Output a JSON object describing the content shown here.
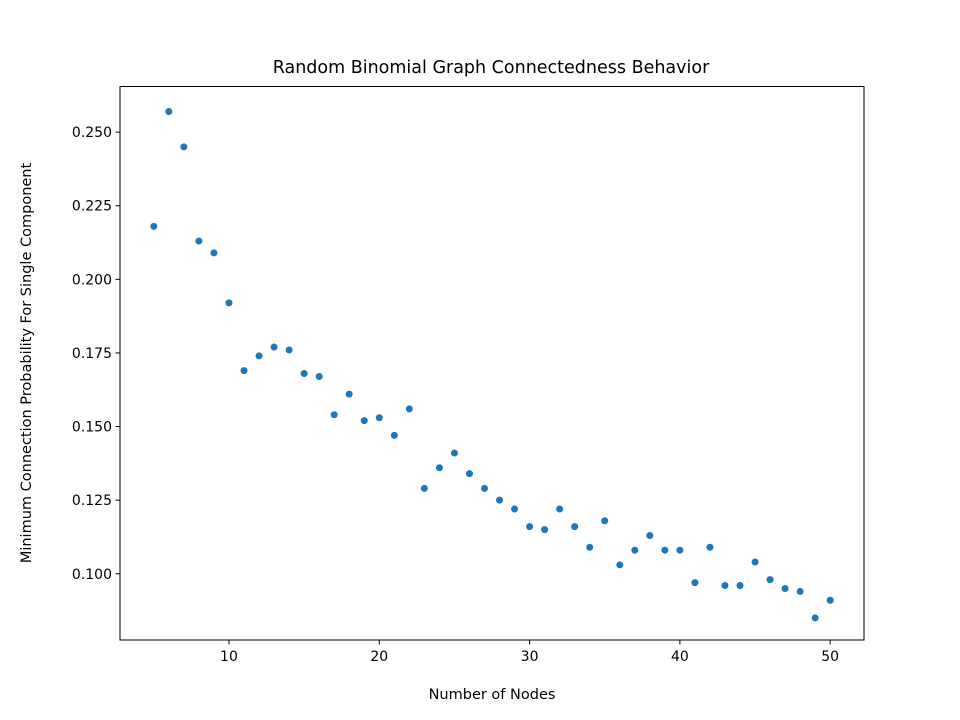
{
  "chart_data": {
    "type": "scatter",
    "title": "Random Binomial Graph Connectedness Behavior",
    "xlabel": "Number of Nodes",
    "ylabel": "Minimum Connection Probability For Single Component",
    "xlim": [
      2.75,
      52.25
    ],
    "ylim": [
      0.0775,
      0.2655
    ],
    "xticks": [
      10,
      20,
      30,
      40,
      50
    ],
    "xtick_labels": [
      "10",
      "20",
      "30",
      "40",
      "50"
    ],
    "yticks": [
      0.1,
      0.125,
      0.15,
      0.175,
      0.2,
      0.225,
      0.25
    ],
    "ytick_labels": [
      "0.100",
      "0.125",
      "0.150",
      "0.175",
      "0.200",
      "0.225",
      "0.250"
    ],
    "grid": false,
    "marker_color": "#1f77b4",
    "x": [
      5,
      6,
      7,
      8,
      9,
      10,
      11,
      12,
      13,
      14,
      15,
      16,
      17,
      18,
      19,
      20,
      21,
      22,
      23,
      24,
      25,
      26,
      27,
      28,
      29,
      30,
      31,
      32,
      33,
      34,
      35,
      36,
      37,
      38,
      39,
      40,
      41,
      42,
      43,
      44,
      45,
      46,
      47,
      48,
      49,
      50
    ],
    "y": [
      0.218,
      0.257,
      0.245,
      0.213,
      0.209,
      0.192,
      0.169,
      0.174,
      0.177,
      0.176,
      0.168,
      0.167,
      0.154,
      0.161,
      0.152,
      0.153,
      0.147,
      0.156,
      0.129,
      0.136,
      0.141,
      0.134,
      0.129,
      0.125,
      0.122,
      0.116,
      0.115,
      0.122,
      0.116,
      0.109,
      0.118,
      0.103,
      0.108,
      0.113,
      0.108,
      0.108,
      0.097,
      0.109,
      0.096,
      0.096,
      0.104,
      0.098,
      0.095,
      0.094,
      0.085,
      0.091
    ]
  }
}
